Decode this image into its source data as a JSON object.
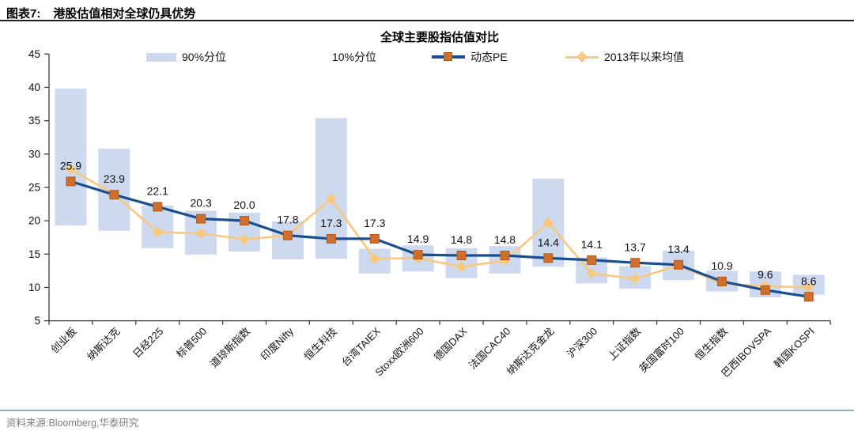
{
  "header": {
    "tag": "图表7:",
    "title": "港股估值相对全球仍具优势"
  },
  "chart": {
    "title": "全球主要股指估值对比"
  },
  "legend": {
    "p90": "90%分位",
    "p10": "10%分位",
    "pe": "动态PE",
    "mean": "2013年以来均值"
  },
  "footer": {
    "source": "资料来源:Bloomberg,华泰研究"
  },
  "colors": {
    "bar": "#cdd9ee",
    "pe_line": "#1b4e8e",
    "pe_marker": "#d06e2c",
    "pe_marker_edge": "#b05a1e",
    "mean_line": "#f9c87c",
    "mean_marker": "#f8c87e",
    "axis": "#3c3c3c",
    "text": "#111111",
    "header_rule": "#1f1f1f",
    "footer_rule": "#93a9c2",
    "source_text": "#7f7f7f"
  },
  "chart_data": {
    "type": "combo-rangebar-line",
    "title": "全球主要股指估值对比",
    "categories": [
      "创业板",
      "纳斯达克",
      "日经225",
      "标普500",
      "道琼斯指数",
      "印度Nifty",
      "恒生科技",
      "台湾TAIEX",
      "Stoxx欧洲600",
      "德国DAX",
      "法国CAC40",
      "纳斯达克金龙",
      "沪深300",
      "上证指数",
      "英国富时100",
      "恒生指数",
      "巴西IBOVSPA",
      "韩国KOSPI"
    ],
    "series": [
      {
        "name": "90%分位",
        "type": "range-top",
        "values": [
          39.8,
          30.8,
          22.3,
          21.5,
          21.2,
          19.9,
          35.4,
          15.8,
          16.3,
          15.9,
          16.2,
          26.3,
          14.5,
          13.2,
          15.5,
          12.5,
          12.4,
          11.9
        ]
      },
      {
        "name": "10%分位",
        "type": "range-bottom",
        "values": [
          19.3,
          18.5,
          15.9,
          14.9,
          15.4,
          14.2,
          14.3,
          12.1,
          12.4,
          11.4,
          12.1,
          13.1,
          10.6,
          9.8,
          11.1,
          9.4,
          8.5,
          8.9
        ]
      },
      {
        "name": "动态PE",
        "type": "line",
        "data_labels": true,
        "values": [
          25.9,
          23.9,
          22.1,
          20.3,
          20.0,
          17.8,
          17.3,
          17.3,
          14.9,
          14.8,
          14.8,
          14.4,
          14.1,
          13.7,
          13.4,
          10.9,
          9.6,
          8.6
        ]
      },
      {
        "name": "2013年以来均值",
        "type": "line",
        "values": [
          27.7,
          24.0,
          18.3,
          18.1,
          17.2,
          17.8,
          23.3,
          14.3,
          14.4,
          13.1,
          14.0,
          19.7,
          12.1,
          11.3,
          13.3,
          10.6,
          10.2,
          10.0
        ]
      }
    ],
    "ylim": [
      5,
      45
    ],
    "ytick_step": 5,
    "grid": false,
    "legend_position": "top"
  }
}
